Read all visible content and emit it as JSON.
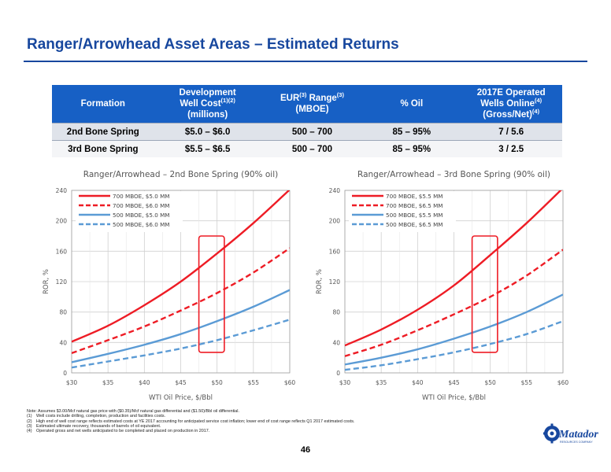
{
  "title": "Ranger/Arrowhead Asset Areas – Estimated Returns",
  "table": {
    "headers": [
      {
        "text": "Formation",
        "sup": ""
      },
      {
        "lines": [
          "Development",
          "Well Cost",
          "(millions)"
        ],
        "sup": "(1)(2)"
      },
      {
        "lines": [
          "EUR",
          "Range",
          "(MBOE)"
        ],
        "sup": "(3)"
      },
      {
        "text": "% Oil",
        "sup": ""
      },
      {
        "lines": [
          "2017E Operated",
          "Wells Online",
          "(Gross/Net)"
        ],
        "sup": "(4)"
      }
    ],
    "rows": [
      [
        "2nd Bone Spring",
        "$5.0 – $6.0",
        "500 – 700",
        "85 – 95%",
        "7 / 5.6"
      ],
      [
        "3rd Bone Spring",
        "$5.5 – $6.5",
        "500 – 700",
        "85 – 95%",
        "3 / 2.5"
      ]
    ]
  },
  "chart_data": [
    {
      "type": "line",
      "title": "Ranger/Arrowhead – 2nd Bone Spring (90% oil)",
      "xlabel": "WTI  Oil Price, $/Bbl",
      "ylabel": "ROR, %",
      "xlim": [
        30,
        60
      ],
      "ylim": [
        0,
        240
      ],
      "xticks": [
        30,
        35,
        40,
        45,
        50,
        55,
        60
      ],
      "xtick_labels": [
        "$30",
        "$35",
        "$40",
        "$45",
        "$50",
        "$55",
        "$60"
      ],
      "yticks": [
        0,
        40,
        80,
        120,
        160,
        200,
        240
      ],
      "grid": true,
      "legend": "top-left",
      "highlight_box": {
        "x": [
          47.5,
          51
        ],
        "y": [
          27,
          180
        ]
      },
      "x": [
        30,
        35,
        40,
        45,
        50,
        55,
        60
      ],
      "series": [
        {
          "name": "700 MBOE, $5.0 MM",
          "color": "#ee1c25",
          "dash": false,
          "values": [
            41,
            62,
            89,
            120,
            157,
            197,
            241
          ]
        },
        {
          "name": "700 MBOE, $6.0 MM",
          "color": "#ee1c25",
          "dash": true,
          "values": [
            26,
            43,
            61,
            82,
            105,
            132,
            164
          ]
        },
        {
          "name": "500 MBOE, $5.0 MM",
          "color": "#5b9bd5",
          "dash": false,
          "values": [
            14,
            25,
            37,
            51,
            68,
            87,
            109
          ]
        },
        {
          "name": "500 MBOE, $6.0 MM",
          "color": "#5b9bd5",
          "dash": true,
          "values": [
            7,
            15,
            23,
            32,
            43,
            56,
            70
          ]
        }
      ]
    },
    {
      "type": "line",
      "title": "Ranger/Arrowhead – 3rd Bone Spring (90% oil)",
      "xlabel": "WTI Oil Price, $/Bbl",
      "ylabel": "ROR, %",
      "xlim": [
        30,
        60
      ],
      "ylim": [
        0,
        240
      ],
      "xticks": [
        30,
        35,
        40,
        45,
        50,
        55,
        60
      ],
      "xtick_labels": [
        "$30",
        "$35",
        "$40",
        "$45",
        "$50",
        "$55",
        "$60"
      ],
      "yticks": [
        0,
        40,
        80,
        120,
        160,
        200,
        240
      ],
      "grid": true,
      "legend": "top-left",
      "highlight_box": {
        "x": [
          47.5,
          51
        ],
        "y": [
          27,
          180
        ]
      },
      "x": [
        30,
        35,
        40,
        45,
        50,
        55,
        60
      ],
      "series": [
        {
          "name": "700 MBOE, $5.5 MM",
          "color": "#ee1c25",
          "dash": false,
          "values": [
            36,
            57,
            83,
            115,
            155,
            197,
            243
          ]
        },
        {
          "name": "700 MBOE, $6.5 MM",
          "color": "#ee1c25",
          "dash": true,
          "values": [
            22,
            37,
            56,
            77,
            100,
            128,
            162
          ]
        },
        {
          "name": "500 MBOE, $5.5 MM",
          "color": "#5b9bd5",
          "dash": false,
          "values": [
            11,
            20,
            31,
            45,
            61,
            80,
            103
          ]
        },
        {
          "name": "500 MBOE, $6.5 MM",
          "color": "#5b9bd5",
          "dash": true,
          "values": [
            4,
            10,
            18,
            27,
            38,
            51,
            68
          ]
        }
      ]
    }
  ],
  "notes": [
    {
      "key": "Note:",
      "text": "Assumes $3.00/Mcf natural gas price with ($0.35)/Mcf natural gas differential and ($1.50)/Bbl oil differential."
    },
    {
      "key": "(1)",
      "text": "Well costs include drilling, completion, production and facilities costs."
    },
    {
      "key": "(2)",
      "text": "High end of well cost range reflects estimated costs at YE 2017 accounting for anticipated service cost inflation; lower end of cost range reflects Q1 2017 estimated costs."
    },
    {
      "key": "(3)",
      "text": "Estimated ultimate recovery, thousands of barrels of oil equivalent."
    },
    {
      "key": "(4)",
      "text": "Operated gross and net wells anticipated to be completed and placed on production in 2017."
    }
  ],
  "page_number": "46",
  "logo": {
    "text": "Matador",
    "subtext": "RESOURCES COMPANY",
    "color": "#17479e"
  }
}
